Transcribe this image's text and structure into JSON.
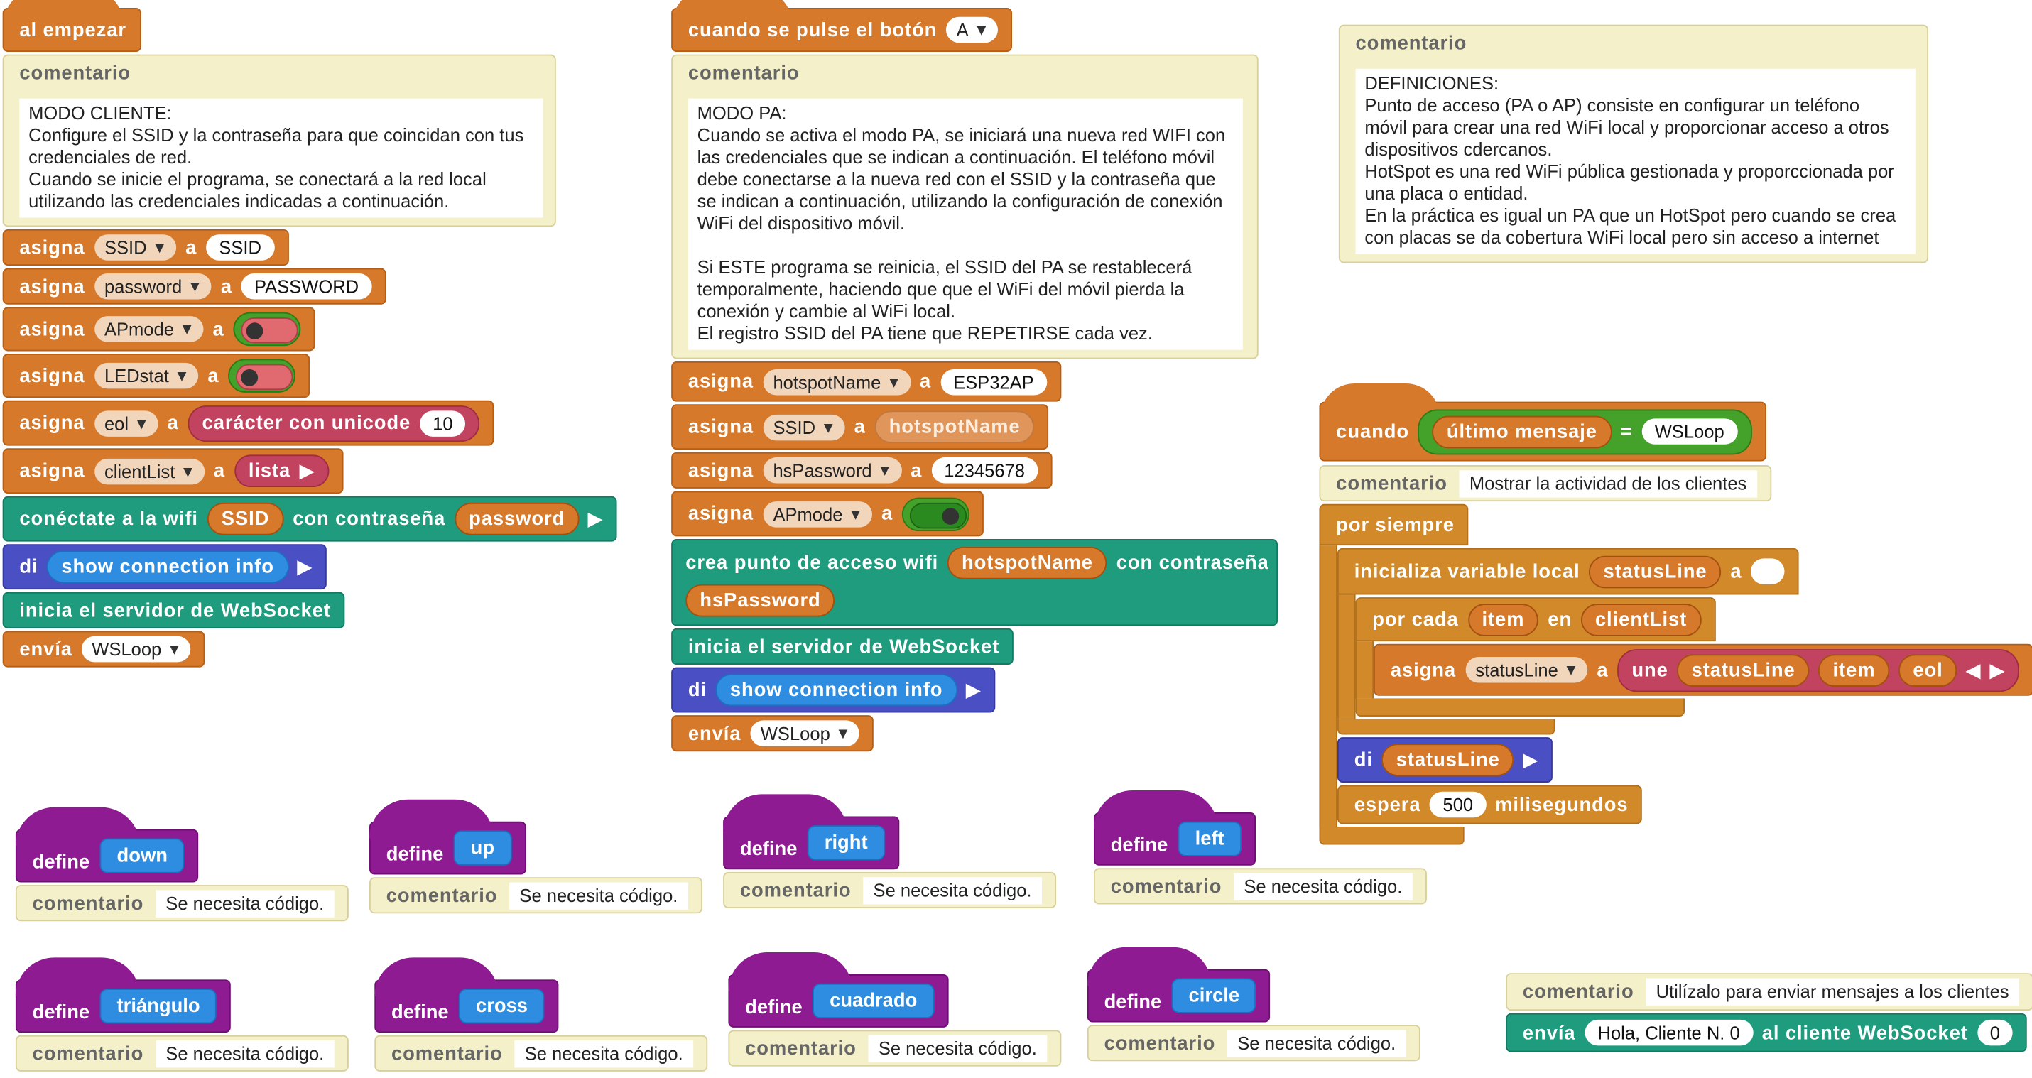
{
  "start": {
    "hat": "al empezar",
    "comment_title": "comentario",
    "comment_text": "MODO CLIENTE:\nConfigure el SSID y la contraseña para que coincidan con tus\ncredenciales de red.\nCuando se inicie el programa, se conectará a la red local\nutilizando las credenciales indicadas a continuación.",
    "set_label": "asigna",
    "to_label": "a",
    "vars": [
      "SSID",
      "password",
      "APmode",
      "LEDstat",
      "eol",
      "clientList"
    ],
    "ssid_value": "SSID",
    "password_value": "PASSWORD",
    "apmode_on": false,
    "ledstat_on": false,
    "unicode_label": "carácter con unicode",
    "unicode_value": "10",
    "list_label": "lista",
    "connect_label": "conéctate a la wifi",
    "connect_ssid": "SSID",
    "connect_with": "con contraseña",
    "connect_password": "password",
    "say_label": "di",
    "show_connection": "show connection info",
    "ws_start": "inicia el servidor de WebSocket",
    "send_label": "envía",
    "send_value": "WSLoop"
  },
  "button": {
    "hat": "cuando se pulse el botón",
    "button_value": "A",
    "comment_title": "comentario",
    "comment_text": "MODO PA:\nCuando se activa el modo PA, se iniciará una nueva red WIFI con\nlas credenciales que se indican a continuación. El teléfono móvil\ndebe conectarse a la nueva red con el SSID y la contraseña que\nse indican a continuación, utilizando la configuración de conexión\nWiFi del dispositivo móvil.\n\nSi ESTE programa se reinicia, el SSID del PA se restablecerá\ntemporalmente, haciendo que que el WiFi del móvil pierda la\nconexión y cambie al WiFi local.\nEl registro SSID del PA tiene que REPETIRSE cada vez.",
    "set_label": "asigna",
    "to_label": "a",
    "var_hotspot": "hotspotName",
    "hotspot_value": "ESP32AP",
    "var_ssid": "SSID",
    "ssid_ref": "hotspotName",
    "var_hspw": "hsPassword",
    "hspw_value": "12345678",
    "var_apmode": "APmode",
    "apmode_on": true,
    "create_label": "crea punto de acceso wifi",
    "create_name": "hotspotName",
    "create_with": "con contraseña",
    "create_password": "hsPassword",
    "ws_start": "inicia el servidor de WebSocket",
    "say_label": "di",
    "show_connection": "show connection info",
    "send_label": "envía",
    "send_value": "WSLoop"
  },
  "definitions": {
    "title": "comentario",
    "text": "DEFINICIONES:\nPunto de acceso (PA o AP) consiste en configurar un teléfono\nmóvil para crear una red WiFi local y proporcionar acceso a otros\ndispositivos cdercanos.\nHotSpot es una red WiFi pública gestionada y proporccionada por\nuna placa o entidad.\nEn la práctica es igual un PA que un HotSpot pero cuando se crea\ncon placas se da cobertura WiFi local pero sin acceso a internet"
  },
  "loop": {
    "when_label": "cuando",
    "last_msg": "último mensaje",
    "eq": "=",
    "eq_value": "WSLoop",
    "comment_title": "comentario",
    "comment_text": "Mostrar la actividad de los clientes",
    "forever": "por siempre",
    "init_label": "inicializa variable local",
    "init_var": "statusLine",
    "to_label": "a",
    "init_value": "",
    "foreach_label": "por cada",
    "foreach_item": "item",
    "in_label": "en",
    "foreach_list": "clientList",
    "set_label": "asigna",
    "set_var": "statusLine",
    "join_label": "une",
    "join_parts": [
      "statusLine",
      "item",
      "eol"
    ],
    "say_label": "di",
    "say_value": "statusLine",
    "wait_label": "espera",
    "wait_value": "500",
    "wait_unit": "milisegundos"
  },
  "procedures": {
    "define_label": "define",
    "comment_title": "comentario",
    "comment_text": "Se necesita código.",
    "names": [
      "down",
      "up",
      "right",
      "left",
      "triángulo",
      "cross",
      "cuadrado",
      "circle"
    ]
  },
  "sendtool": {
    "comment_title": "comentario",
    "comment_text": "Utilízalo para enviar mensajes a los clientes",
    "send_label": "envía",
    "message": "Hola, Cliente N. 0",
    "to_client": "al cliente WebSocket",
    "client_id": "0"
  },
  "colors": {
    "variables": "#d6792b",
    "control": "#d1892a",
    "network": "#1f9b7d",
    "looks": "#4a4fc4",
    "procedures": "#8e1b91",
    "comment": "#f4f0c9"
  }
}
